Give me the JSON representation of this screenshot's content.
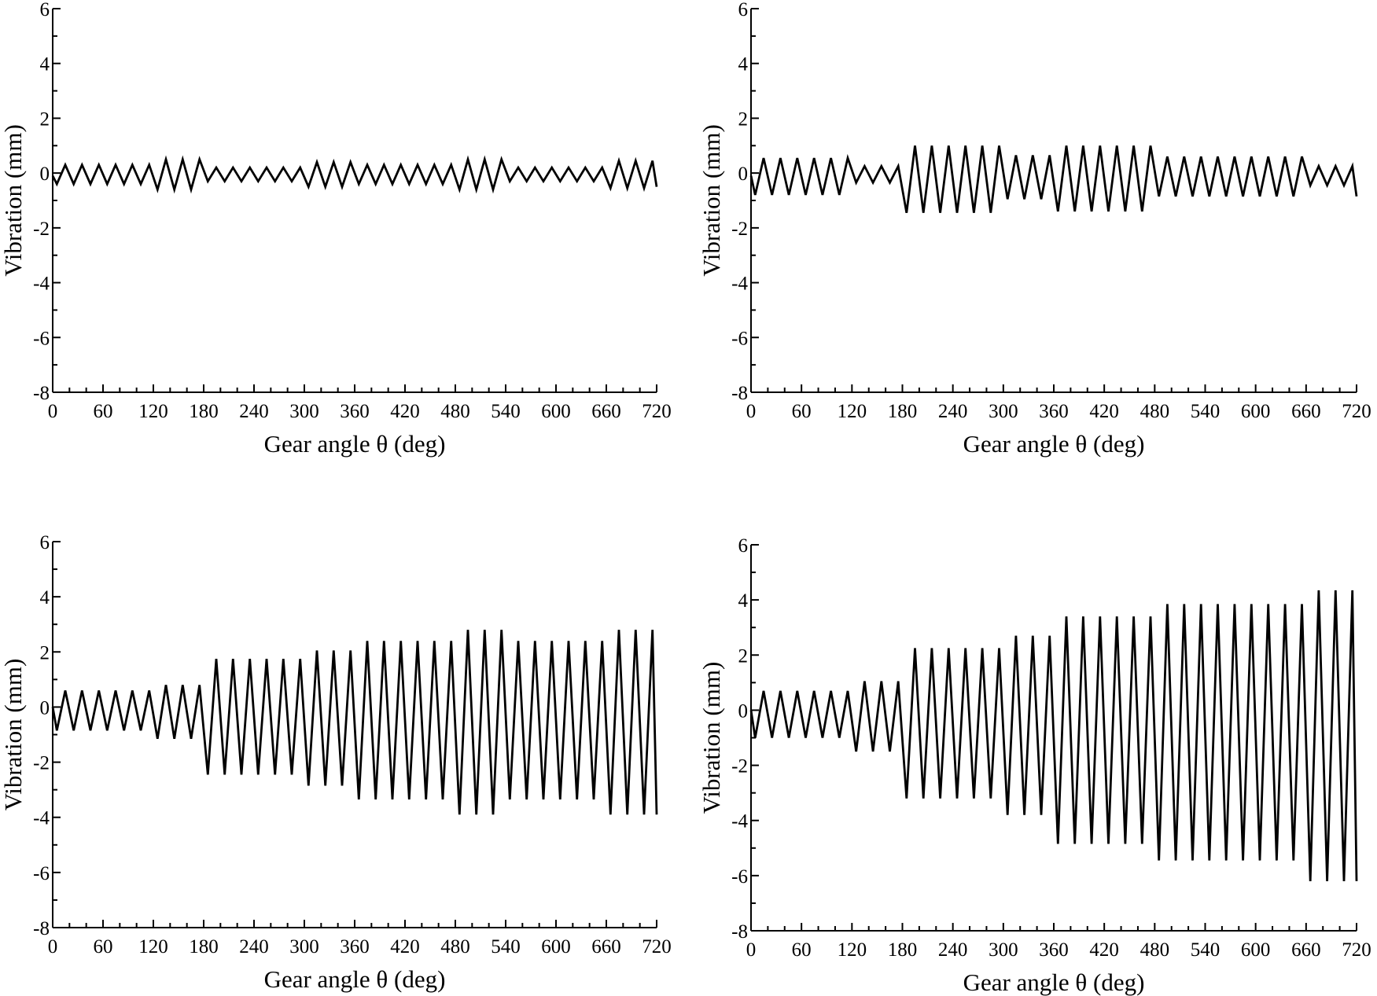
{
  "chart_data": [
    {
      "type": "line",
      "xlabel": "Gear angle θ (deg)",
      "ylabel": "Vibration (mm)",
      "color": "#000000",
      "xlim": [
        0,
        720
      ],
      "xticks": [
        0,
        60,
        120,
        180,
        240,
        300,
        360,
        420,
        480,
        540,
        600,
        660,
        720
      ],
      "ylim": [
        -8,
        6
      ],
      "yticks": [
        -8,
        -6,
        -4,
        -2,
        0,
        2,
        4,
        6
      ],
      "x": [
        0,
        5,
        15,
        25,
        35,
        45,
        55,
        65,
        75,
        85,
        95,
        105,
        115,
        125,
        135,
        145,
        155,
        165,
        175,
        185,
        195,
        205,
        215,
        225,
        235,
        245,
        255,
        265,
        275,
        285,
        295,
        305,
        315,
        325,
        335,
        345,
        355,
        365,
        375,
        385,
        395,
        405,
        415,
        425,
        435,
        445,
        455,
        465,
        475,
        485,
        495,
        505,
        515,
        525,
        535,
        545,
        555,
        565,
        575,
        585,
        595,
        605,
        615,
        625,
        635,
        645,
        655,
        665,
        675,
        685,
        695,
        705,
        715,
        720
      ],
      "values": [
        -0.1,
        -0.4,
        0.3,
        -0.4,
        0.3,
        -0.4,
        0.3,
        -0.4,
        0.3,
        -0.4,
        0.3,
        -0.4,
        0.3,
        -0.6,
        0.5,
        -0.6,
        0.5,
        -0.6,
        0.5,
        -0.3,
        0.2,
        -0.3,
        0.2,
        -0.3,
        0.2,
        -0.3,
        0.2,
        -0.3,
        0.2,
        -0.3,
        0.2,
        -0.5,
        0.4,
        -0.5,
        0.4,
        -0.5,
        0.4,
        -0.4,
        0.3,
        -0.4,
        0.3,
        -0.4,
        0.3,
        -0.4,
        0.3,
        -0.4,
        0.3,
        -0.4,
        0.3,
        -0.6,
        0.5,
        -0.6,
        0.5,
        -0.6,
        0.5,
        -0.3,
        0.2,
        -0.3,
        0.2,
        -0.3,
        0.2,
        -0.3,
        0.2,
        -0.3,
        0.2,
        -0.3,
        0.2,
        -0.55,
        0.45,
        -0.55,
        0.45,
        -0.55,
        0.45,
        -0.5
      ]
    },
    {
      "type": "line",
      "xlabel": "Gear angle θ (deg)",
      "ylabel": "Vibration (mm)",
      "color": "#000000",
      "xlim": [
        0,
        720
      ],
      "xticks": [
        0,
        60,
        120,
        180,
        240,
        300,
        360,
        420,
        480,
        540,
        600,
        660,
        720
      ],
      "ylim": [
        -8,
        6
      ],
      "yticks": [
        -8,
        -6,
        -4,
        -2,
        0,
        2,
        4,
        6
      ],
      "x": [
        0,
        5,
        15,
        25,
        35,
        45,
        55,
        65,
        75,
        85,
        95,
        105,
        115,
        125,
        135,
        145,
        155,
        165,
        175,
        185,
        195,
        205,
        215,
        225,
        235,
        245,
        255,
        265,
        275,
        285,
        295,
        305,
        315,
        325,
        335,
        345,
        355,
        365,
        375,
        385,
        395,
        405,
        415,
        425,
        435,
        445,
        455,
        465,
        475,
        485,
        495,
        505,
        515,
        525,
        535,
        545,
        555,
        565,
        575,
        585,
        595,
        605,
        615,
        625,
        635,
        645,
        655,
        665,
        675,
        685,
        695,
        705,
        715,
        720
      ],
      "values": [
        -0.1,
        -0.8,
        0.55,
        -0.8,
        0.55,
        -0.8,
        0.55,
        -0.8,
        0.55,
        -0.8,
        0.55,
        -0.8,
        0.55,
        -0.35,
        0.25,
        -0.35,
        0.25,
        -0.35,
        0.25,
        -1.45,
        1.0,
        -1.45,
        1.0,
        -1.45,
        1.0,
        -1.45,
        1.0,
        -1.45,
        1.0,
        -1.45,
        1.0,
        -0.95,
        0.65,
        -0.95,
        0.65,
        -0.95,
        0.65,
        -1.4,
        1.0,
        -1.4,
        1.0,
        -1.4,
        1.0,
        -1.4,
        1.0,
        -1.4,
        1.0,
        -1.4,
        1.0,
        -0.85,
        0.6,
        -0.85,
        0.6,
        -0.85,
        0.6,
        -0.85,
        0.6,
        -0.85,
        0.6,
        -0.85,
        0.6,
        -0.85,
        0.6,
        -0.85,
        0.6,
        -0.85,
        0.6,
        -0.45,
        0.25,
        -0.45,
        0.25,
        -0.45,
        0.25,
        -0.85
      ]
    },
    {
      "type": "line",
      "xlabel": "Gear angle θ (deg)",
      "ylabel": "Vibration (mm)",
      "color": "#000000",
      "xlim": [
        0,
        720
      ],
      "xticks": [
        0,
        60,
        120,
        180,
        240,
        300,
        360,
        420,
        480,
        540,
        600,
        660,
        720
      ],
      "ylim": [
        -8,
        6
      ],
      "yticks": [
        -8,
        -6,
        -4,
        -2,
        0,
        2,
        4,
        6
      ],
      "x": [
        0,
        5,
        15,
        25,
        35,
        45,
        55,
        65,
        75,
        85,
        95,
        105,
        115,
        125,
        135,
        145,
        155,
        165,
        175,
        185,
        195,
        205,
        215,
        225,
        235,
        245,
        255,
        265,
        275,
        285,
        295,
        305,
        315,
        325,
        335,
        345,
        355,
        365,
        375,
        385,
        395,
        405,
        415,
        425,
        435,
        445,
        455,
        465,
        475,
        485,
        495,
        505,
        515,
        525,
        535,
        545,
        555,
        565,
        575,
        585,
        595,
        605,
        615,
        625,
        635,
        645,
        655,
        665,
        675,
        685,
        695,
        705,
        715,
        720
      ],
      "values": [
        0,
        -0.85,
        0.6,
        -0.85,
        0.6,
        -0.85,
        0.6,
        -0.85,
        0.6,
        -0.85,
        0.6,
        -0.85,
        0.6,
        -1.15,
        0.8,
        -1.15,
        0.8,
        -1.15,
        0.8,
        -2.45,
        1.75,
        -2.45,
        1.75,
        -2.45,
        1.75,
        -2.45,
        1.75,
        -2.45,
        1.75,
        -2.45,
        1.75,
        -2.85,
        2.05,
        -2.85,
        2.05,
        -2.85,
        2.05,
        -3.35,
        2.4,
        -3.35,
        2.4,
        -3.35,
        2.4,
        -3.35,
        2.4,
        -3.35,
        2.4,
        -3.35,
        2.4,
        -3.9,
        2.8,
        -3.9,
        2.8,
        -3.9,
        2.8,
        -3.35,
        2.4,
        -3.35,
        2.4,
        -3.35,
        2.4,
        -3.35,
        2.4,
        -3.35,
        2.4,
        -3.35,
        2.4,
        -3.9,
        2.8,
        -3.9,
        2.8,
        -3.9,
        2.8,
        -3.9
      ]
    },
    {
      "type": "line",
      "xlabel": "Gear angle θ (deg)",
      "ylabel": "Vibration (mm)",
      "color": "#000000",
      "xlim": [
        0,
        720
      ],
      "xticks": [
        0,
        60,
        120,
        180,
        240,
        300,
        360,
        420,
        480,
        540,
        600,
        660,
        720
      ],
      "ylim": [
        -8,
        6
      ],
      "yticks": [
        -8,
        -6,
        -4,
        -2,
        0,
        2,
        4,
        6
      ],
      "x": [
        0,
        5,
        15,
        25,
        35,
        45,
        55,
        65,
        75,
        85,
        95,
        105,
        115,
        125,
        135,
        145,
        155,
        165,
        175,
        185,
        195,
        205,
        215,
        225,
        235,
        245,
        255,
        265,
        275,
        285,
        295,
        305,
        315,
        325,
        335,
        345,
        355,
        365,
        375,
        385,
        395,
        405,
        415,
        425,
        435,
        445,
        455,
        465,
        475,
        485,
        495,
        505,
        515,
        525,
        535,
        545,
        555,
        565,
        575,
        585,
        595,
        605,
        615,
        625,
        635,
        645,
        655,
        665,
        675,
        685,
        695,
        705,
        715,
        720
      ],
      "values": [
        0,
        -1.0,
        0.7,
        -1.0,
        0.7,
        -1.0,
        0.7,
        -1.0,
        0.7,
        -1.0,
        0.7,
        -1.0,
        0.7,
        -1.5,
        1.05,
        -1.5,
        1.05,
        -1.5,
        1.05,
        -3.2,
        2.25,
        -3.2,
        2.25,
        -3.2,
        2.25,
        -3.2,
        2.25,
        -3.2,
        2.25,
        -3.2,
        2.25,
        -3.8,
        2.7,
        -3.8,
        2.7,
        -3.8,
        2.7,
        -4.85,
        3.4,
        -4.85,
        3.4,
        -4.85,
        3.4,
        -4.85,
        3.4,
        -4.85,
        3.4,
        -4.85,
        3.4,
        -5.45,
        3.85,
        -5.45,
        3.85,
        -5.45,
        3.85,
        -5.45,
        3.85,
        -5.45,
        3.85,
        -5.45,
        3.85,
        -5.45,
        3.85,
        -5.45,
        3.85,
        -5.45,
        3.85,
        -6.2,
        4.35,
        -6.2,
        4.35,
        -6.2,
        4.35,
        -6.2
      ]
    }
  ]
}
